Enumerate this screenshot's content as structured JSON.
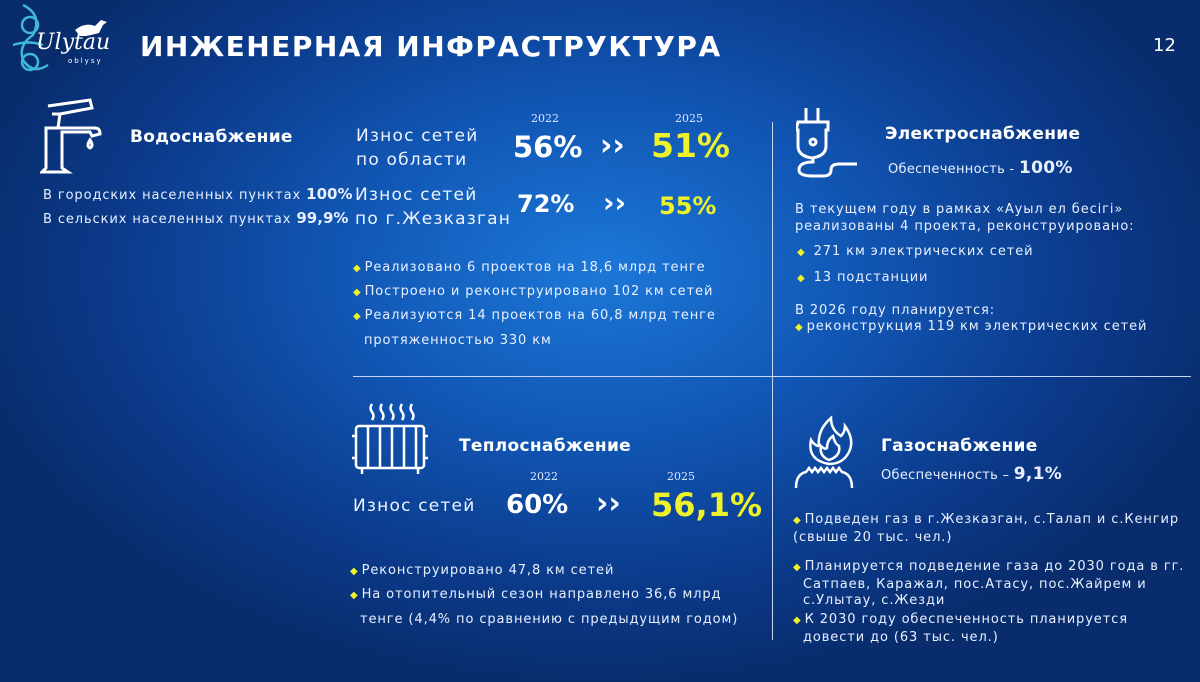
{
  "header": {
    "title": "ИНЖЕНЕРНАЯ ИНФРАСТРУКТУРА",
    "page_number": "12",
    "logo_text": "Ulytau",
    "logo_sub": "oblysy"
  },
  "water": {
    "title": "Водоснабжение",
    "lines": [
      {
        "text": "В городских населенных пунктах",
        "value": "100%"
      },
      {
        "text": "В сельских населенных пунктах",
        "value": "99,9%"
      }
    ]
  },
  "wear": {
    "year_from": "2022",
    "year_to": "2025",
    "rows": [
      {
        "label1": "Износ сетей",
        "label2": "по области",
        "from": "56%",
        "to": "51%"
      },
      {
        "label1": "Износ сетей",
        "label2": "по г.Жезказган",
        "from": "72%",
        "to": "55%"
      }
    ],
    "bullets": [
      "Реализовано 6 проектов на 18,6 млрд тенге",
      "Построено и реконструировано 102 км сетей",
      "Реализуются 14 проектов на 60,8 млрд тенге"
    ],
    "bullet_cont": "протяженностью 330 км"
  },
  "electricity": {
    "title": "Электроснабжение",
    "coverage_label": "Обеспеченность -",
    "coverage": "100%",
    "intro1": "В текущем году в рамках «Ауыл ел бесігі»",
    "intro2": "реализованы 4 проекта, реконструировано:",
    "bullets": [
      "271 км электрических сетей",
      "13 подстанции"
    ],
    "plan_label": "В 2026 году планируется:",
    "plan_bullet": "реконструкция 119 км электрических сетей"
  },
  "heat": {
    "title": "Теплоснабжение",
    "year_from": "2022",
    "year_to": "2025",
    "label": "Износ сетей",
    "from": "60%",
    "to": "56,1%",
    "bullets": [
      "Реконструировано 47,8 км сетей",
      "На отопительный сезон направлено 36,6 млрд"
    ],
    "bullet_cont": "тенге (4,4% по сравнению с предыдущим годом)"
  },
  "gas": {
    "title": "Газоснабжение",
    "coverage_label": "Обеспеченность –",
    "coverage": "9,1%",
    "b1": [
      "Подведен газ в г.Жезказган, с.Талап и с.Кенгир",
      "(свыше 20 тыс. чел.)"
    ],
    "b2": [
      "Планируется подведение газа до 2030 года в гг.",
      "Сатпаев, Каражал, пос.Атасу, пос.Жайрем и",
      "с.Улытау, с.Жезди"
    ],
    "b3": [
      "К 2030 году обеспеченность планируется",
      "довести до (63 тыс. чел.)"
    ]
  },
  "colors": {
    "accent": "#eef22a",
    "bg": "#1156b4"
  }
}
